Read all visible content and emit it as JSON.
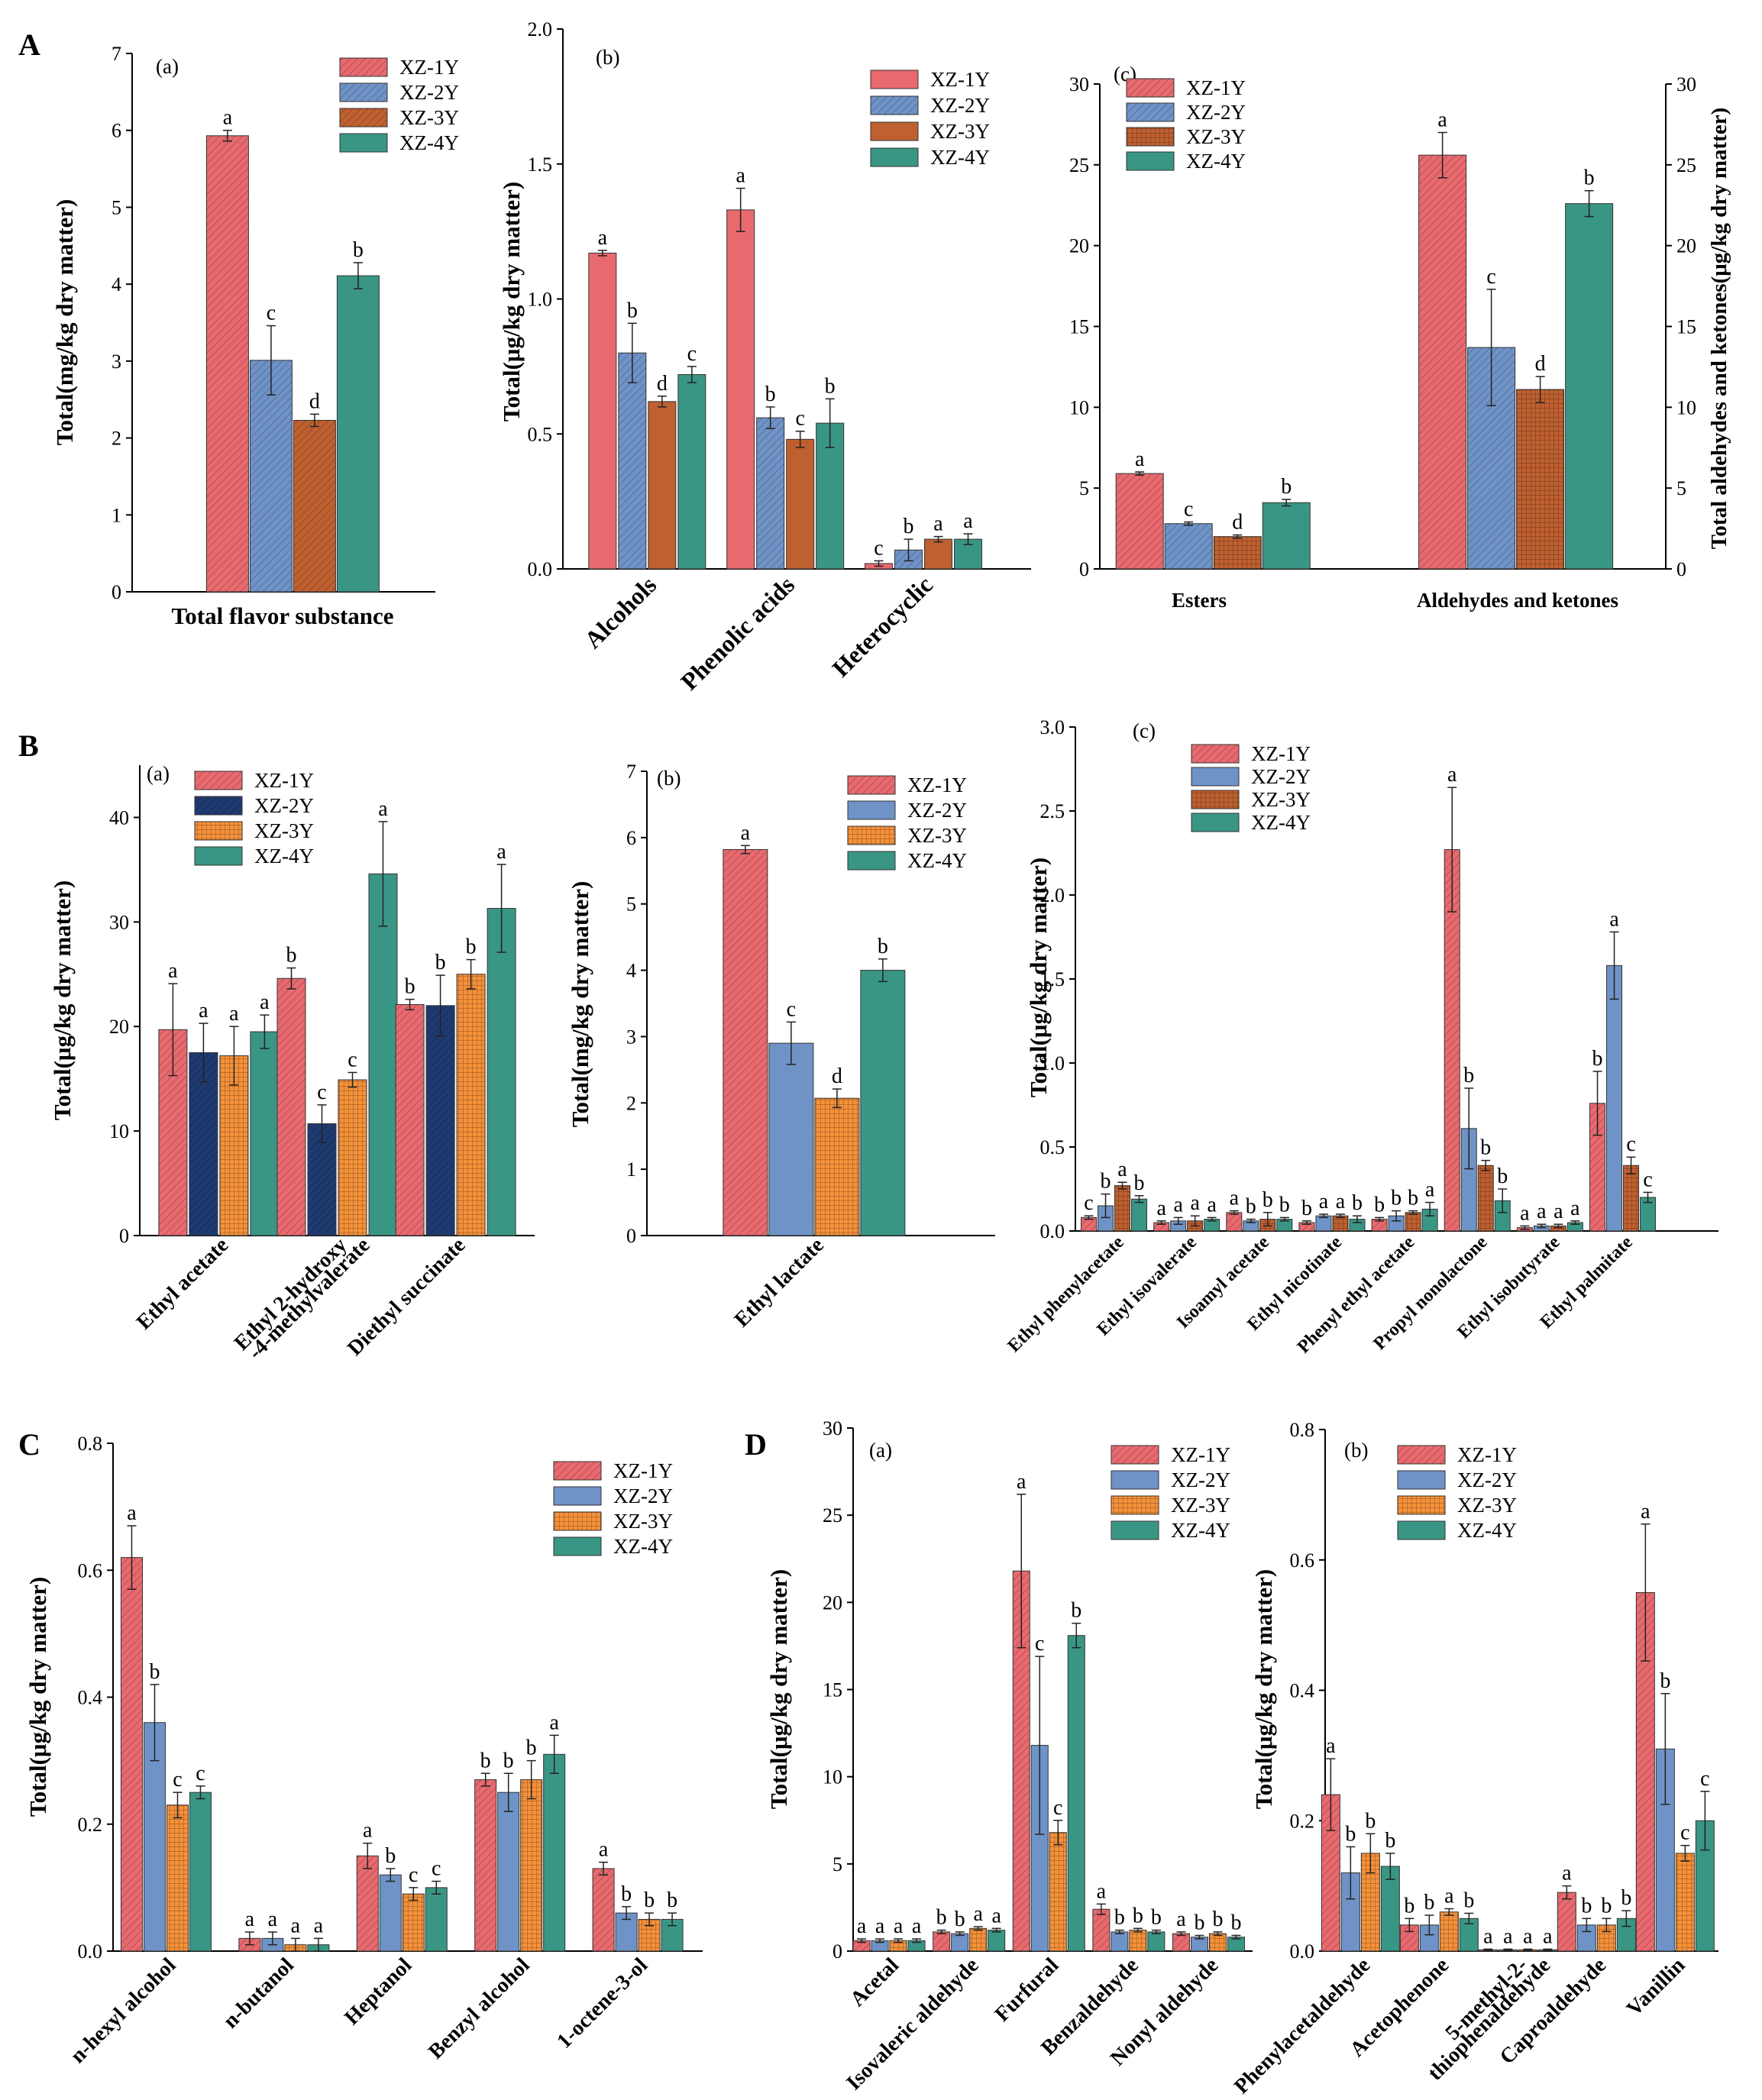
{
  "figure": {
    "panel_letters": [
      "A",
      "B",
      "C",
      "D"
    ],
    "colors": {
      "XZ-1Y": "#e86a6f",
      "XZ-2Y": "#6f93c6",
      "XZ-3Y": "#bf6030",
      "XZ-4Y": "#3a9684",
      "XZ-2Y_B": "#1f3a70",
      "XZ-3Y_B": "#f5913a",
      "axis": "#000000"
    }
  },
  "chart_data": [
    {
      "id": "A-a",
      "type": "bar",
      "panel": "A",
      "subtitle": "(a)",
      "xlabel": "Total flavor substance",
      "ylabel": "Total(mg/kg dry matter)",
      "ylim": [
        0,
        7
      ],
      "yticks": [
        "0",
        "1",
        "2",
        "3",
        "4",
        "5",
        "6",
        "7"
      ],
      "categories": [
        "Total flavor substance"
      ],
      "legend": [
        "XZ-1Y",
        "XZ-2Y",
        "XZ-3Y",
        "XZ-4Y"
      ],
      "legend_position": "top-right",
      "series": [
        {
          "name": "XZ-1Y",
          "values": [
            5.93
          ],
          "errors": [
            0.07
          ],
          "letters": [
            "a"
          ]
        },
        {
          "name": "XZ-2Y",
          "values": [
            3.01
          ],
          "errors": [
            0.45
          ],
          "letters": [
            "c"
          ]
        },
        {
          "name": "XZ-3Y",
          "values": [
            2.23
          ],
          "errors": [
            0.08
          ],
          "letters": [
            "d"
          ]
        },
        {
          "name": "XZ-4Y",
          "values": [
            4.11
          ],
          "errors": [
            0.17
          ],
          "letters": [
            "b"
          ]
        }
      ]
    },
    {
      "id": "A-b",
      "type": "bar",
      "panel": "A",
      "subtitle": "(b)",
      "xlabel": "",
      "ylabel": "Total(μg/kg dry matter)",
      "ylim": [
        0,
        2.0
      ],
      "yticks": [
        "0.0",
        "0.5",
        "1.0",
        "1.5",
        "2.0"
      ],
      "categories": [
        "Alcohols",
        "Phenolic acids",
        "Heterocyclic"
      ],
      "legend": [
        "XZ-1Y",
        "XZ-2Y",
        "XZ-3Y",
        "XZ-4Y"
      ],
      "legend_position": "top-right",
      "series": [
        {
          "name": "XZ-1Y",
          "values": [
            1.17,
            1.33,
            0.02
          ],
          "errors": [
            0.01,
            0.08,
            0.01
          ],
          "letters": [
            "a",
            "a",
            "c"
          ]
        },
        {
          "name": "XZ-2Y",
          "values": [
            0.8,
            0.56,
            0.07
          ],
          "errors": [
            0.11,
            0.04,
            0.04
          ],
          "letters": [
            "b",
            "b",
            "b"
          ]
        },
        {
          "name": "XZ-3Y",
          "values": [
            0.62,
            0.48,
            0.11
          ],
          "errors": [
            0.02,
            0.03,
            0.01
          ],
          "letters": [
            "d",
            "c",
            "a"
          ]
        },
        {
          "name": "XZ-4Y",
          "values": [
            0.72,
            0.54,
            0.11
          ],
          "errors": [
            0.03,
            0.09,
            0.02
          ],
          "letters": [
            "c",
            "b",
            "a"
          ]
        }
      ]
    },
    {
      "id": "A-c",
      "type": "bar",
      "panel": "A",
      "subtitle": "(c)",
      "xlabel": "",
      "ylabel": "",
      "ylabel_right": "Total aldehydes and ketones(μg/kg dry matter)",
      "ylim": [
        0,
        30
      ],
      "yticks": [
        "0",
        "5",
        "10",
        "15",
        "20",
        "25",
        "30"
      ],
      "categories": [
        "Esters",
        "Aldehydes and ketones"
      ],
      "legend": [
        "XZ-1Y",
        "XZ-2Y",
        "XZ-3Y",
        "XZ-4Y"
      ],
      "legend_position": "top-left",
      "series": [
        {
          "name": "XZ-1Y",
          "values": [
            5.9,
            25.6
          ],
          "errors": [
            0.1,
            1.4
          ],
          "letters": [
            "a",
            "a"
          ]
        },
        {
          "name": "XZ-2Y",
          "values": [
            2.8,
            13.7
          ],
          "errors": [
            0.1,
            3.6
          ],
          "letters": [
            "c",
            "c"
          ]
        },
        {
          "name": "XZ-3Y",
          "values": [
            2.0,
            11.1
          ],
          "errors": [
            0.1,
            0.8
          ],
          "letters": [
            "d",
            "d"
          ]
        },
        {
          "name": "XZ-4Y",
          "values": [
            4.1,
            22.6
          ],
          "errors": [
            0.2,
            0.8
          ],
          "letters": [
            "b",
            "b"
          ]
        }
      ]
    },
    {
      "id": "B-a",
      "type": "bar",
      "panel": "B",
      "subtitle": "(a)",
      "xlabel": "",
      "ylabel": "Total(μg/kg dry matter)",
      "ylim": [
        0,
        45
      ],
      "yticks": [
        "0",
        "10",
        "20",
        "30",
        "40"
      ],
      "ytick_values": [
        0,
        10,
        20,
        30,
        40
      ],
      "categories": [
        "Ethyl acetate",
        "Ethyl 2-hydroxy\n-4-methylvalerate",
        "Diethyl succinate"
      ],
      "legend": [
        "XZ-1Y",
        "XZ-2Y",
        "XZ-3Y",
        "XZ-4Y"
      ],
      "legend_position": "top-left",
      "series": [
        {
          "name": "XZ-1Y",
          "values": [
            19.7,
            24.6,
            22.1
          ],
          "errors": [
            4.4,
            1.0,
            0.5
          ],
          "letters": [
            "a",
            "b",
            "b"
          ]
        },
        {
          "name": "XZ-2Y",
          "values": [
            17.5,
            10.7,
            22.0
          ],
          "errors": [
            2.8,
            1.8,
            2.9
          ],
          "letters": [
            "a",
            "c",
            "b"
          ]
        },
        {
          "name": "XZ-3Y",
          "values": [
            17.2,
            14.9,
            25.0
          ],
          "errors": [
            2.8,
            0.7,
            1.4
          ],
          "letters": [
            "a",
            "c",
            "b"
          ]
        },
        {
          "name": "XZ-4Y",
          "values": [
            19.5,
            34.6,
            31.3
          ],
          "errors": [
            1.6,
            5.0,
            4.2
          ],
          "letters": [
            "a",
            "a",
            "a"
          ]
        }
      ]
    },
    {
      "id": "B-b",
      "type": "bar",
      "panel": "B",
      "subtitle": "(b)",
      "xlabel": "",
      "ylabel": "Total(mg/kg dry matter)",
      "ylim": [
        0,
        7
      ],
      "yticks": [
        "0",
        "1",
        "2",
        "3",
        "4",
        "5",
        "6",
        "7"
      ],
      "categories": [
        "Ethyl lactate"
      ],
      "legend": [
        "XZ-1Y",
        "XZ-2Y",
        "XZ-3Y",
        "XZ-4Y"
      ],
      "legend_position": "top-right",
      "series": [
        {
          "name": "XZ-1Y",
          "values": [
            5.82
          ],
          "errors": [
            0.06
          ],
          "letters": [
            "a"
          ]
        },
        {
          "name": "XZ-2Y",
          "values": [
            2.9
          ],
          "errors": [
            0.32
          ],
          "letters": [
            "c"
          ]
        },
        {
          "name": "XZ-3Y",
          "values": [
            2.07
          ],
          "errors": [
            0.14
          ],
          "letters": [
            "d"
          ]
        },
        {
          "name": "XZ-4Y",
          "values": [
            4.0
          ],
          "errors": [
            0.17
          ],
          "letters": [
            "b"
          ]
        }
      ]
    },
    {
      "id": "B-c",
      "type": "bar",
      "panel": "B",
      "subtitle": "(c)",
      "xlabel": "",
      "ylabel": "Total(μg/kg dry matter)",
      "ylim": [
        0,
        3.0
      ],
      "yticks": [
        "0.0",
        "0.5",
        "1.0",
        "1.5",
        "2.0",
        "2.5",
        "3.0"
      ],
      "categories": [
        "Ethyl phenylacetate",
        "Ethyl isovalerate",
        "Isoamyl acetate",
        "Ethyl nicotinate",
        "Phenyl ethyl acetate",
        "Propyl nonolactone",
        "Ethyl isobutyrate",
        "Ethyl palmitate"
      ],
      "legend": [
        "XZ-1Y",
        "XZ-2Y",
        "XZ-3Y",
        "XZ-4Y"
      ],
      "legend_position": "top-center",
      "series": [
        {
          "name": "XZ-1Y",
          "values": [
            0.08,
            0.05,
            0.11,
            0.05,
            0.07,
            2.27,
            0.02,
            0.76
          ],
          "errors": [
            0.01,
            0.01,
            0.01,
            0.01,
            0.01,
            0.37,
            0.01,
            0.19
          ],
          "letters": [
            "c",
            "a",
            "a",
            "b",
            "b",
            "a",
            "a",
            "b"
          ]
        },
        {
          "name": "XZ-2Y",
          "values": [
            0.15,
            0.06,
            0.06,
            0.09,
            0.09,
            0.61,
            0.03,
            1.58
          ],
          "errors": [
            0.07,
            0.02,
            0.01,
            0.01,
            0.03,
            0.24,
            0.01,
            0.2
          ],
          "letters": [
            "b",
            "a",
            "b",
            "a",
            "b",
            "b",
            "a",
            "a"
          ]
        },
        {
          "name": "XZ-3Y",
          "values": [
            0.27,
            0.06,
            0.07,
            0.09,
            0.11,
            0.39,
            0.03,
            0.39
          ],
          "errors": [
            0.02,
            0.03,
            0.04,
            0.01,
            0.01,
            0.03,
            0.01,
            0.05
          ],
          "letters": [
            "a",
            "a",
            "b",
            "a",
            "b",
            "b",
            "a",
            "c"
          ]
        },
        {
          "name": "XZ-4Y",
          "values": [
            0.19,
            0.07,
            0.07,
            0.07,
            0.13,
            0.18,
            0.05,
            0.2
          ],
          "errors": [
            0.02,
            0.01,
            0.01,
            0.02,
            0.04,
            0.07,
            0.01,
            0.03
          ],
          "letters": [
            "b",
            "a",
            "b",
            "b",
            "a",
            "b",
            "a",
            "c"
          ]
        }
      ]
    },
    {
      "id": "C",
      "type": "bar",
      "panel": "C",
      "subtitle": "",
      "xlabel": "",
      "ylabel": "Total(μg/kg dry matter)",
      "ylim": [
        0,
        0.8
      ],
      "yticks": [
        "0.0",
        "0.2",
        "0.4",
        "0.6",
        "0.8"
      ],
      "categories": [
        "n-hexyl alcohol",
        "n-butanol",
        "Heptanol",
        "Benzyl alcohol",
        "1-octene-3-ol"
      ],
      "legend": [
        "XZ-1Y",
        "XZ-2Y",
        "XZ-3Y",
        "XZ-4Y"
      ],
      "legend_position": "top-right",
      "series": [
        {
          "name": "XZ-1Y",
          "values": [
            0.62,
            0.02,
            0.15,
            0.27,
            0.13
          ],
          "errors": [
            0.05,
            0.01,
            0.02,
            0.01,
            0.01
          ],
          "letters": [
            "a",
            "a",
            "a",
            "b",
            "a"
          ]
        },
        {
          "name": "XZ-2Y",
          "values": [
            0.36,
            0.02,
            0.12,
            0.25,
            0.06
          ],
          "errors": [
            0.06,
            0.01,
            0.01,
            0.03,
            0.01
          ],
          "letters": [
            "b",
            "a",
            "b",
            "b",
            "b"
          ]
        },
        {
          "name": "XZ-3Y",
          "values": [
            0.23,
            0.01,
            0.09,
            0.27,
            0.05
          ],
          "errors": [
            0.02,
            0.01,
            0.01,
            0.03,
            0.01
          ],
          "letters": [
            "c",
            "a",
            "c",
            "b",
            "b"
          ]
        },
        {
          "name": "XZ-4Y",
          "values": [
            0.25,
            0.01,
            0.1,
            0.31,
            0.05
          ],
          "errors": [
            0.01,
            0.01,
            0.01,
            0.03,
            0.01
          ],
          "letters": [
            "c",
            "a",
            "c",
            "a",
            "b"
          ]
        }
      ]
    },
    {
      "id": "D-a",
      "type": "bar",
      "panel": "D",
      "subtitle": "(a)",
      "xlabel": "",
      "ylabel": "Total(μg/kg dry matter)",
      "ylim": [
        0,
        30
      ],
      "yticks": [
        "0",
        "5",
        "10",
        "15",
        "20",
        "25",
        "30"
      ],
      "categories": [
        "Acetal",
        "Isovaleric aldehyde",
        "Furfural",
        "Benzaldehyde",
        "Nonyl aldehyde"
      ],
      "legend": [
        "XZ-1Y",
        "XZ-2Y",
        "XZ-3Y",
        "XZ-4Y"
      ],
      "legend_position": "top-right",
      "series": [
        {
          "name": "XZ-1Y",
          "values": [
            0.6,
            1.1,
            21.8,
            2.4,
            1.0
          ],
          "errors": [
            0.1,
            0.1,
            4.4,
            0.3,
            0.1
          ],
          "letters": [
            "a",
            "b",
            "a",
            "a",
            "a"
          ]
        },
        {
          "name": "XZ-2Y",
          "values": [
            0.6,
            1.0,
            11.8,
            1.1,
            0.8
          ],
          "errors": [
            0.1,
            0.1,
            5.1,
            0.1,
            0.1
          ],
          "letters": [
            "a",
            "b",
            "c",
            "b",
            "b"
          ]
        },
        {
          "name": "XZ-3Y",
          "values": [
            0.6,
            1.3,
            6.8,
            1.2,
            1.0
          ],
          "errors": [
            0.1,
            0.1,
            0.7,
            0.1,
            0.1
          ],
          "letters": [
            "a",
            "a",
            "c",
            "b",
            "b"
          ]
        },
        {
          "name": "XZ-4Y",
          "values": [
            0.6,
            1.2,
            18.1,
            1.1,
            0.8
          ],
          "errors": [
            0.1,
            0.1,
            0.7,
            0.1,
            0.1
          ],
          "letters": [
            "a",
            "a",
            "b",
            "b",
            "b"
          ]
        }
      ]
    },
    {
      "id": "D-b",
      "type": "bar",
      "panel": "D",
      "subtitle": "(b)",
      "xlabel": "",
      "ylabel": "Total(μg/kg dry matter)",
      "ylim": [
        0,
        0.8
      ],
      "yticks": [
        "0.0",
        "0.2",
        "0.4",
        "0.6",
        "0.8"
      ],
      "categories": [
        "Phenylacetaldehyde",
        "Acetophenone",
        "5-methyl-2-\nthiophenaldehyde",
        "Caproaldehyde",
        "Vanillin"
      ],
      "legend": [
        "XZ-1Y",
        "XZ-2Y",
        "XZ-3Y",
        "XZ-4Y"
      ],
      "legend_position": "top-right",
      "series": [
        {
          "name": "XZ-1Y",
          "values": [
            0.24,
            0.04,
            0.002,
            0.09,
            0.55
          ],
          "errors": [
            0.055,
            0.01,
            0.001,
            0.01,
            0.105
          ],
          "letters": [
            "a",
            "b",
            "a",
            "a",
            "a"
          ]
        },
        {
          "name": "XZ-2Y",
          "values": [
            0.12,
            0.04,
            0.002,
            0.04,
            0.31
          ],
          "errors": [
            0.04,
            0.015,
            0.001,
            0.01,
            0.085
          ],
          "letters": [
            "b",
            "b",
            "a",
            "b",
            "b"
          ]
        },
        {
          "name": "XZ-3Y",
          "values": [
            0.15,
            0.06,
            0.002,
            0.04,
            0.15
          ],
          "errors": [
            0.03,
            0.005,
            0.001,
            0.01,
            0.012
          ],
          "letters": [
            "b",
            "a",
            "a",
            "b",
            "c"
          ]
        },
        {
          "name": "XZ-4Y",
          "values": [
            0.13,
            0.05,
            0.002,
            0.05,
            0.2
          ],
          "errors": [
            0.02,
            0.008,
            0.001,
            0.012,
            0.045
          ],
          "letters": [
            "b",
            "b",
            "a",
            "b",
            "c"
          ]
        }
      ]
    }
  ]
}
